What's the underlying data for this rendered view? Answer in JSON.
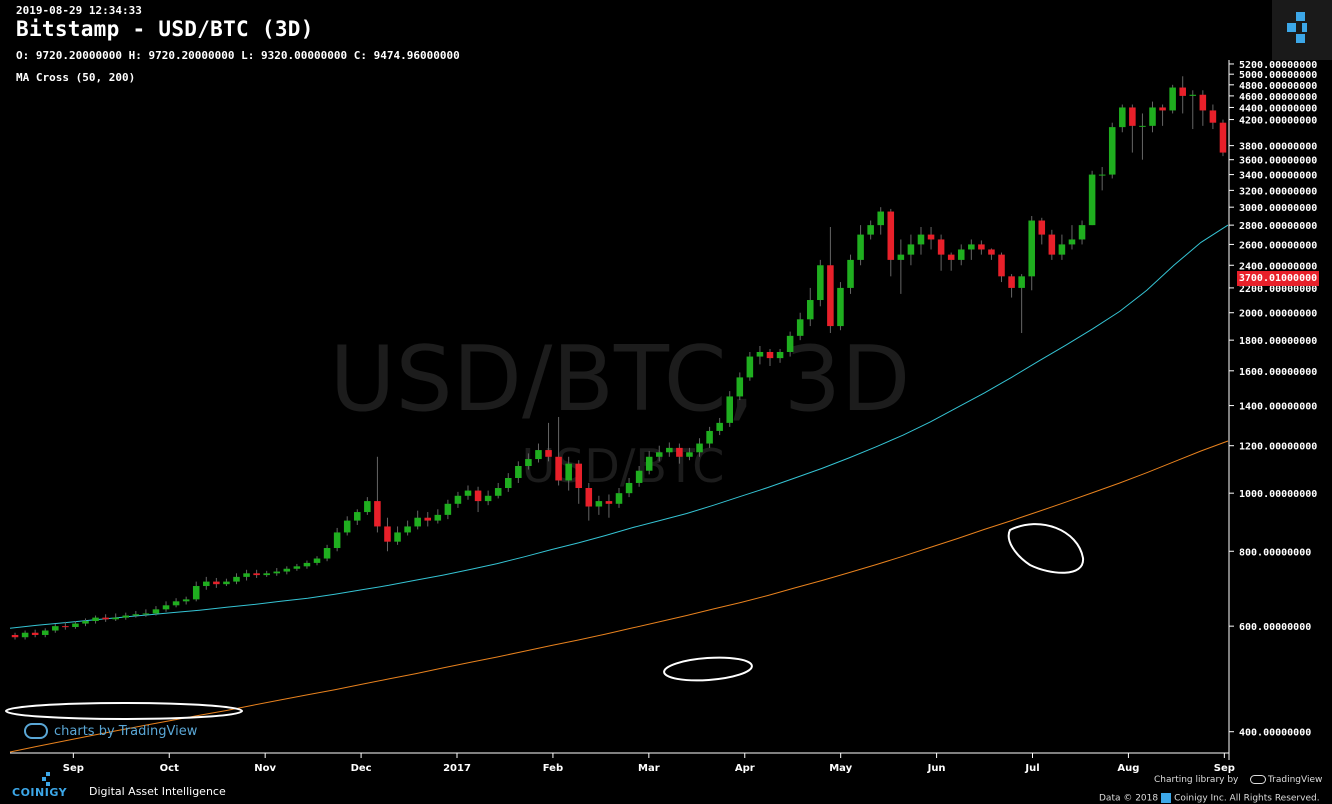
{
  "header": {
    "timestamp": "2019-08-29 12:34:33",
    "title": "Bitstamp - USD/BTC (3D)",
    "ohlc": "O: 9720.20000000 H: 9720.20000000 L: 9320.00000000 C: 9474.96000000",
    "indicator": "MA Cross (50, 200)"
  },
  "watermark": {
    "main": "USD/BTC, 3D",
    "sub": "USD/BTC"
  },
  "last_price_label": "3700.01000000",
  "tv_badge": "charts by TradingView",
  "footer": {
    "brand": "COINIGY",
    "tagline": "Digital Asset Intelligence",
    "charting_library": "Charting library by",
    "tradingview": "TradingView",
    "rights_prefix": "Data © 2018",
    "rights_suffix": "Coinigy Inc. All Rights Reserved."
  },
  "colors": {
    "up": "#1fae1f",
    "down": "#e8202a",
    "ma50": "#35c4d4",
    "ma200": "#e8821e",
    "annotation": "#ffffff",
    "axis_text": "#ffffff",
    "brand": "#3ca7e8"
  },
  "chart_data": {
    "type": "candlestick",
    "y_scale": "log",
    "ylim": [
      370,
      5280
    ],
    "y_ticks": [
      "400.00000000",
      "600.00000000",
      "800.00000000",
      "1000.00000000",
      "1200.00000000",
      "1400.00000000",
      "1600.00000000",
      "1800.00000000",
      "2000.00000000",
      "2200.00000000",
      "2400.00000000",
      "2600.00000000",
      "2800.00000000",
      "3000.00000000",
      "3200.00000000",
      "3400.00000000",
      "3600.00000000",
      "3800.00000000",
      "4200.00000000",
      "4400.00000000",
      "4600.00000000",
      "4800.00000000",
      "5000.00000000",
      "5200.00000000"
    ],
    "x_ticks": [
      "Sep",
      "Oct",
      "Nov",
      "Dec",
      "2017",
      "Feb",
      "Mar",
      "Apr",
      "May",
      "Jun",
      "Jul",
      "Aug",
      "Sep"
    ],
    "series": [
      {
        "name": "MA 50",
        "values": [
          595,
          602,
          608,
          614,
          620,
          626,
          632,
          638,
          645,
          652,
          660,
          668,
          678,
          690,
          702,
          716,
          730,
          746,
          763,
          783,
          805,
          826,
          850,
          876,
          900,
          925,
          955,
          988,
          1022,
          1060,
          1100,
          1145,
          1195,
          1250,
          1315,
          1390,
          1470,
          1560,
          1660,
          1765,
          1880,
          2010,
          2180,
          2400,
          2620,
          2800
        ]
      },
      {
        "name": "MA 200",
        "values": [
          370,
          378,
          386,
          394,
          402,
          410,
          418,
          426,
          434,
          443,
          452,
          461,
          470,
          480,
          490,
          500,
          511,
          522,
          533,
          545,
          557,
          569,
          582,
          596,
          610,
          625,
          641,
          657,
          675,
          695,
          715,
          737,
          760,
          785,
          812,
          840,
          870,
          900,
          932,
          966,
          1002,
          1040,
          1082,
          1128,
          1176,
          1222
        ]
      }
    ],
    "candles": [
      [
        580,
        575,
        585,
        570
      ],
      [
        575,
        585,
        590,
        570
      ],
      [
        585,
        580,
        592,
        575
      ],
      [
        580,
        590,
        595,
        575
      ],
      [
        590,
        600,
        605,
        585
      ],
      [
        600,
        598,
        610,
        592
      ],
      [
        598,
        606,
        612,
        594
      ],
      [
        606,
        612,
        618,
        600
      ],
      [
        612,
        620,
        625,
        606
      ],
      [
        620,
        616,
        628,
        610
      ],
      [
        616,
        620,
        630,
        612
      ],
      [
        620,
        625,
        632,
        615
      ],
      [
        625,
        628,
        636,
        620
      ],
      [
        628,
        630,
        640,
        622
      ],
      [
        630,
        640,
        648,
        625
      ],
      [
        640,
        650,
        660,
        634
      ],
      [
        650,
        660,
        668,
        645
      ],
      [
        660,
        665,
        672,
        652
      ],
      [
        665,
        700,
        712,
        660
      ],
      [
        700,
        712,
        725,
        690
      ],
      [
        712,
        705,
        722,
        695
      ],
      [
        705,
        712,
        720,
        700
      ],
      [
        712,
        725,
        735,
        705
      ],
      [
        725,
        735,
        745,
        715
      ],
      [
        735,
        730,
        745,
        722
      ],
      [
        730,
        735,
        742,
        725
      ],
      [
        735,
        740,
        750,
        728
      ],
      [
        740,
        748,
        755,
        732
      ],
      [
        748,
        755,
        762,
        742
      ],
      [
        755,
        765,
        772,
        748
      ],
      [
        765,
        778,
        785,
        758
      ],
      [
        778,
        810,
        820,
        770
      ],
      [
        810,
        860,
        875,
        800
      ],
      [
        860,
        900,
        915,
        850
      ],
      [
        900,
        930,
        940,
        885
      ],
      [
        930,
        970,
        985,
        920
      ],
      [
        970,
        880,
        1150,
        860
      ],
      [
        880,
        830,
        910,
        800
      ],
      [
        830,
        860,
        880,
        820
      ],
      [
        860,
        880,
        900,
        850
      ],
      [
        880,
        910,
        935,
        870
      ],
      [
        910,
        900,
        930,
        880
      ],
      [
        900,
        920,
        940,
        890
      ],
      [
        920,
        960,
        975,
        905
      ],
      [
        960,
        990,
        1005,
        945
      ],
      [
        990,
        1010,
        1030,
        975
      ],
      [
        1010,
        970,
        1025,
        930
      ],
      [
        970,
        990,
        1010,
        955
      ],
      [
        990,
        1020,
        1040,
        980
      ],
      [
        1020,
        1060,
        1080,
        1005
      ],
      [
        1060,
        1110,
        1130,
        1040
      ],
      [
        1110,
        1140,
        1165,
        1095
      ],
      [
        1140,
        1180,
        1210,
        1125
      ],
      [
        1180,
        1150,
        1310,
        1130
      ],
      [
        1150,
        1050,
        1340,
        1030
      ],
      [
        1050,
        1120,
        1150,
        1010
      ],
      [
        1120,
        1020,
        1135,
        960
      ],
      [
        1020,
        950,
        1040,
        900
      ],
      [
        950,
        970,
        990,
        920
      ],
      [
        970,
        960,
        995,
        910
      ],
      [
        960,
        1000,
        1020,
        945
      ],
      [
        1000,
        1040,
        1060,
        985
      ],
      [
        1040,
        1090,
        1110,
        1025
      ],
      [
        1090,
        1150,
        1175,
        1075
      ],
      [
        1150,
        1170,
        1200,
        1130
      ],
      [
        1170,
        1190,
        1215,
        1150
      ],
      [
        1190,
        1150,
        1210,
        1120
      ],
      [
        1150,
        1170,
        1190,
        1135
      ],
      [
        1170,
        1210,
        1235,
        1150
      ],
      [
        1210,
        1270,
        1290,
        1190
      ],
      [
        1270,
        1310,
        1335,
        1250
      ],
      [
        1310,
        1450,
        1480,
        1290
      ],
      [
        1450,
        1560,
        1590,
        1430
      ],
      [
        1560,
        1690,
        1720,
        1540
      ],
      [
        1690,
        1720,
        1760,
        1640
      ],
      [
        1720,
        1680,
        1740,
        1630
      ],
      [
        1680,
        1720,
        1740,
        1650
      ],
      [
        1720,
        1830,
        1860,
        1690
      ],
      [
        1830,
        1950,
        2000,
        1800
      ],
      [
        1950,
        2100,
        2200,
        1900
      ],
      [
        2100,
        2400,
        2450,
        2050
      ],
      [
        2400,
        1900,
        2780,
        1850
      ],
      [
        1900,
        2200,
        2250,
        1870
      ],
      [
        2200,
        2450,
        2500,
        2150
      ],
      [
        2450,
        2700,
        2800,
        2400
      ],
      [
        2700,
        2800,
        2850,
        2650
      ],
      [
        2800,
        2950,
        3000,
        2700
      ],
      [
        2950,
        2450,
        2980,
        2300
      ],
      [
        2450,
        2500,
        2650,
        2150
      ],
      [
        2500,
        2600,
        2700,
        2400
      ],
      [
        2600,
        2700,
        2780,
        2500
      ],
      [
        2700,
        2650,
        2780,
        2550
      ],
      [
        2650,
        2500,
        2700,
        2350
      ],
      [
        2500,
        2450,
        2520,
        2350
      ],
      [
        2450,
        2550,
        2600,
        2400
      ],
      [
        2550,
        2600,
        2650,
        2450
      ],
      [
        2600,
        2550,
        2640,
        2500
      ],
      [
        2550,
        2500,
        2560,
        2450
      ],
      [
        2500,
        2300,
        2520,
        2250
      ],
      [
        2300,
        2200,
        2320,
        2120
      ],
      [
        2200,
        2300,
        2320,
        1850
      ],
      [
        2300,
        2850,
        2900,
        2180
      ],
      [
        2850,
        2700,
        2880,
        2600
      ],
      [
        2700,
        2500,
        2750,
        2450
      ],
      [
        2500,
        2600,
        2700,
        2450
      ],
      [
        2600,
        2650,
        2800,
        2550
      ],
      [
        2650,
        2800,
        2850,
        2600
      ],
      [
        2800,
        3400,
        3450,
        2800
      ],
      [
        3400,
        3400,
        3500,
        3200
      ],
      [
        3400,
        4080,
        4150,
        3350
      ],
      [
        4080,
        4400,
        4450,
        4000
      ],
      [
        4400,
        4100,
        4450,
        3700
      ],
      [
        4100,
        4100,
        4300,
        3600
      ],
      [
        4100,
        4400,
        4500,
        4000
      ],
      [
        4400,
        4350,
        4450,
        4100
      ],
      [
        4350,
        4750,
        4800,
        4300
      ],
      [
        4750,
        4600,
        4960,
        4300
      ],
      [
        4600,
        4620,
        4700,
        4050
      ],
      [
        4620,
        4350,
        4700,
        4100
      ],
      [
        4350,
        4150,
        4450,
        4050
      ],
      [
        4150,
        3700,
        4200,
        3650
      ]
    ]
  }
}
